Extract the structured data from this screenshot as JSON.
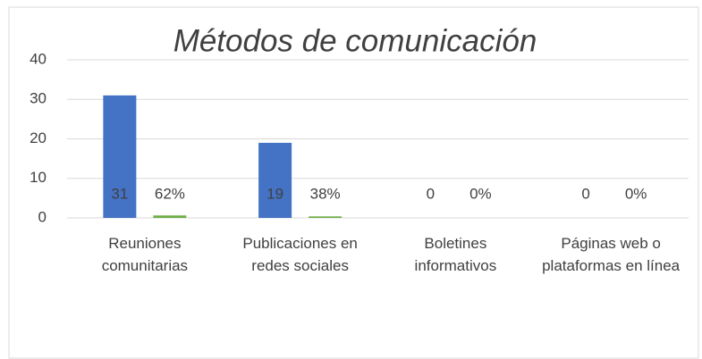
{
  "chart_data": {
    "type": "bar",
    "title": "Métodos de comunicación",
    "categories": [
      "Reuniones comunitarias",
      "Publicaciones en redes sociales",
      "Boletines informativos",
      "Páginas web o plataformas en línea"
    ],
    "series": [
      {
        "color": "#4472c4",
        "values": [
          31,
          19,
          0,
          0
        ]
      },
      {
        "color": "#70ad47",
        "values": [
          0.62,
          0.38,
          0,
          0
        ],
        "value_labels": [
          "62%",
          "38%",
          "0%",
          "0%"
        ]
      }
    ],
    "ylim": [
      0,
      40
    ],
    "yticks": [
      0,
      10,
      20,
      30,
      40
    ],
    "grid": true
  }
}
